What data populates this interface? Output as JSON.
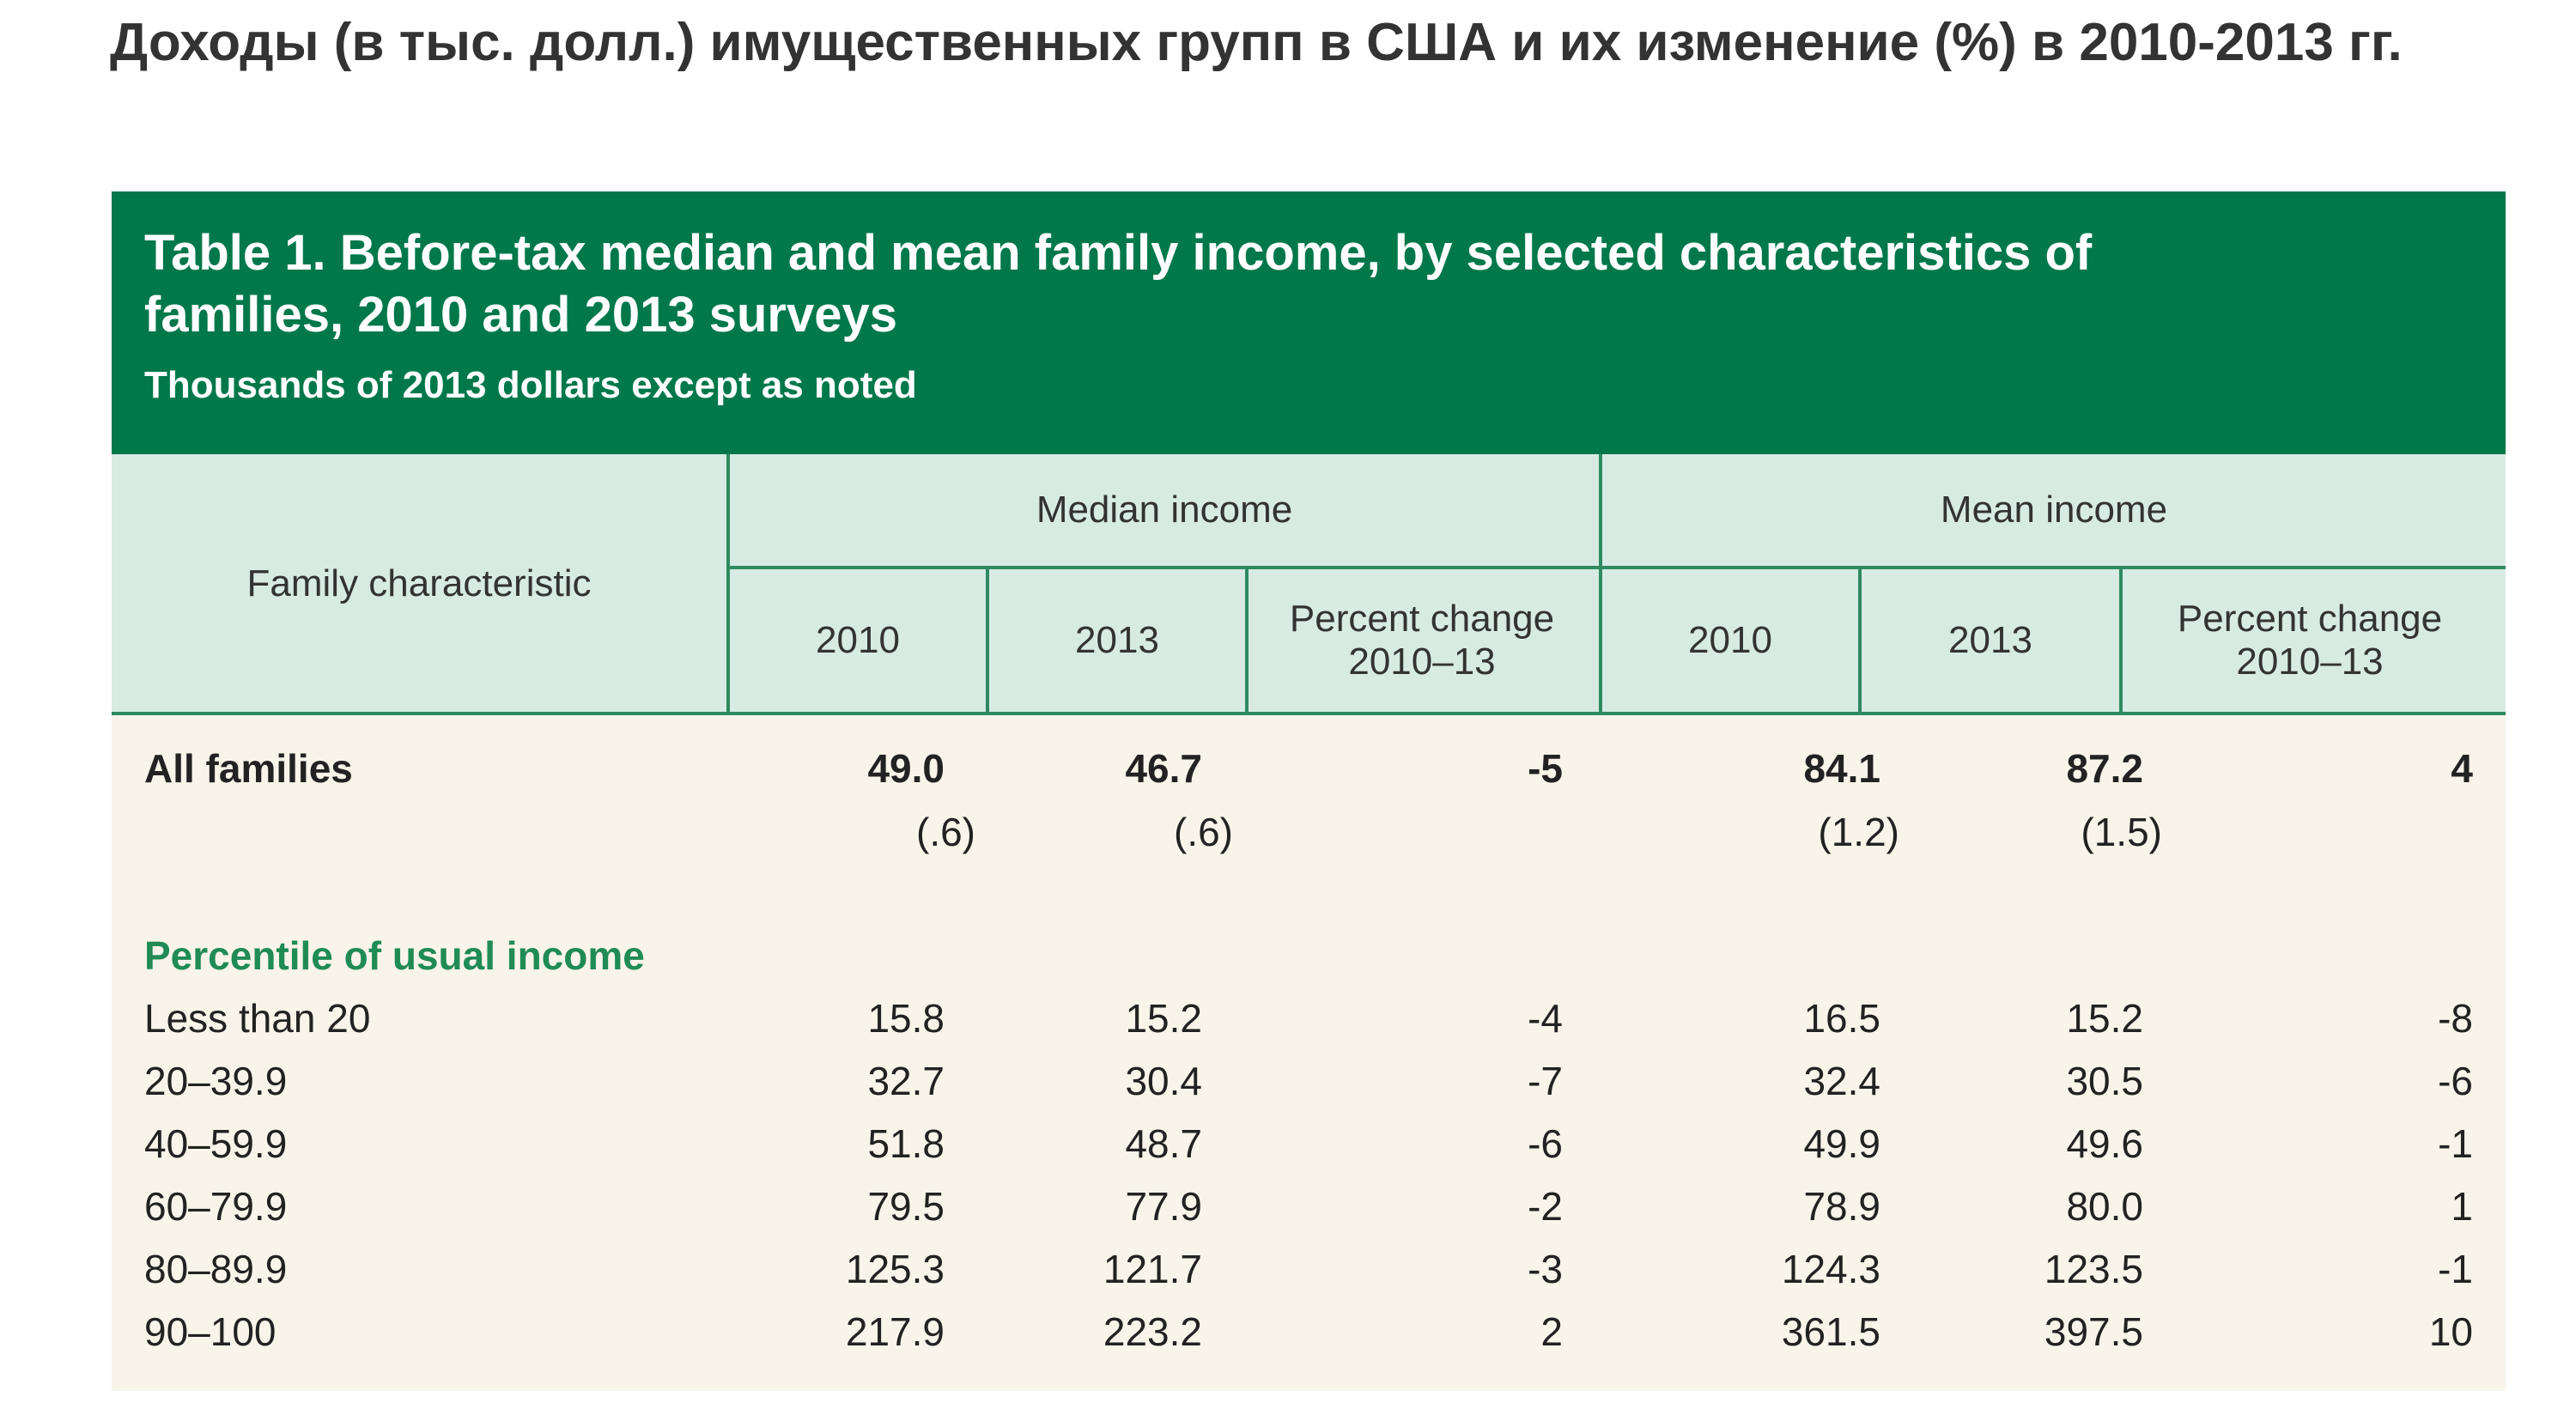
{
  "page_heading": "Доходы (в тыс. долл.) имущественных групп в США и их изменение (%) в 2010-2013 гг.",
  "table": {
    "title": "Table 1. Before-tax median and mean family income, by selected characteristics of families, 2010 and 2013 surveys",
    "subtitle": "Thousands of 2013 dollars except as noted",
    "header": {
      "family_characteristic": "Family characteristic",
      "median_group": "Median income",
      "mean_group": "Mean income",
      "median_2010": "2010",
      "median_2013": "2013",
      "median_change": "Percent change 2010–13",
      "mean_2010": "2010",
      "mean_2013": "2013",
      "mean_change": "Percent change 2010–13"
    },
    "all_families": {
      "label": "All families",
      "median_2010": "49.0",
      "median_2013": "46.7",
      "median_change": "-5",
      "mean_2010": "84.1",
      "mean_2013": "87.2",
      "mean_change": "4",
      "se_median_2010": "(.6)",
      "se_median_2013": "(.6)",
      "se_mean_2010": "(1.2)",
      "se_mean_2013": "(1.5)"
    },
    "section_label": "Percentile of usual income",
    "rows": [
      {
        "label": "Less than 20",
        "median_2010": "15.8",
        "median_2013": "15.2",
        "median_change": "-4",
        "mean_2010": "16.5",
        "mean_2013": "15.2",
        "mean_change": "-8"
      },
      {
        "label": "20–39.9",
        "median_2010": "32.7",
        "median_2013": "30.4",
        "median_change": "-7",
        "mean_2010": "32.4",
        "mean_2013": "30.5",
        "mean_change": "-6"
      },
      {
        "label": "40–59.9",
        "median_2010": "51.8",
        "median_2013": "48.7",
        "median_change": "-6",
        "mean_2010": "49.9",
        "mean_2013": "49.6",
        "mean_change": "-1"
      },
      {
        "label": "60–79.9",
        "median_2010": "79.5",
        "median_2013": "77.9",
        "median_change": "-2",
        "mean_2010": "78.9",
        "mean_2013": "80.0",
        "mean_change": "1"
      },
      {
        "label": "80–89.9",
        "median_2010": "125.3",
        "median_2013": "121.7",
        "median_change": "-3",
        "mean_2010": "124.3",
        "mean_2013": "123.5",
        "mean_change": "-1"
      },
      {
        "label": "90–100",
        "median_2010": "217.9",
        "median_2013": "223.2",
        "median_change": "2",
        "mean_2010": "361.5",
        "mean_2013": "397.5",
        "mean_change": "10"
      }
    ]
  }
}
